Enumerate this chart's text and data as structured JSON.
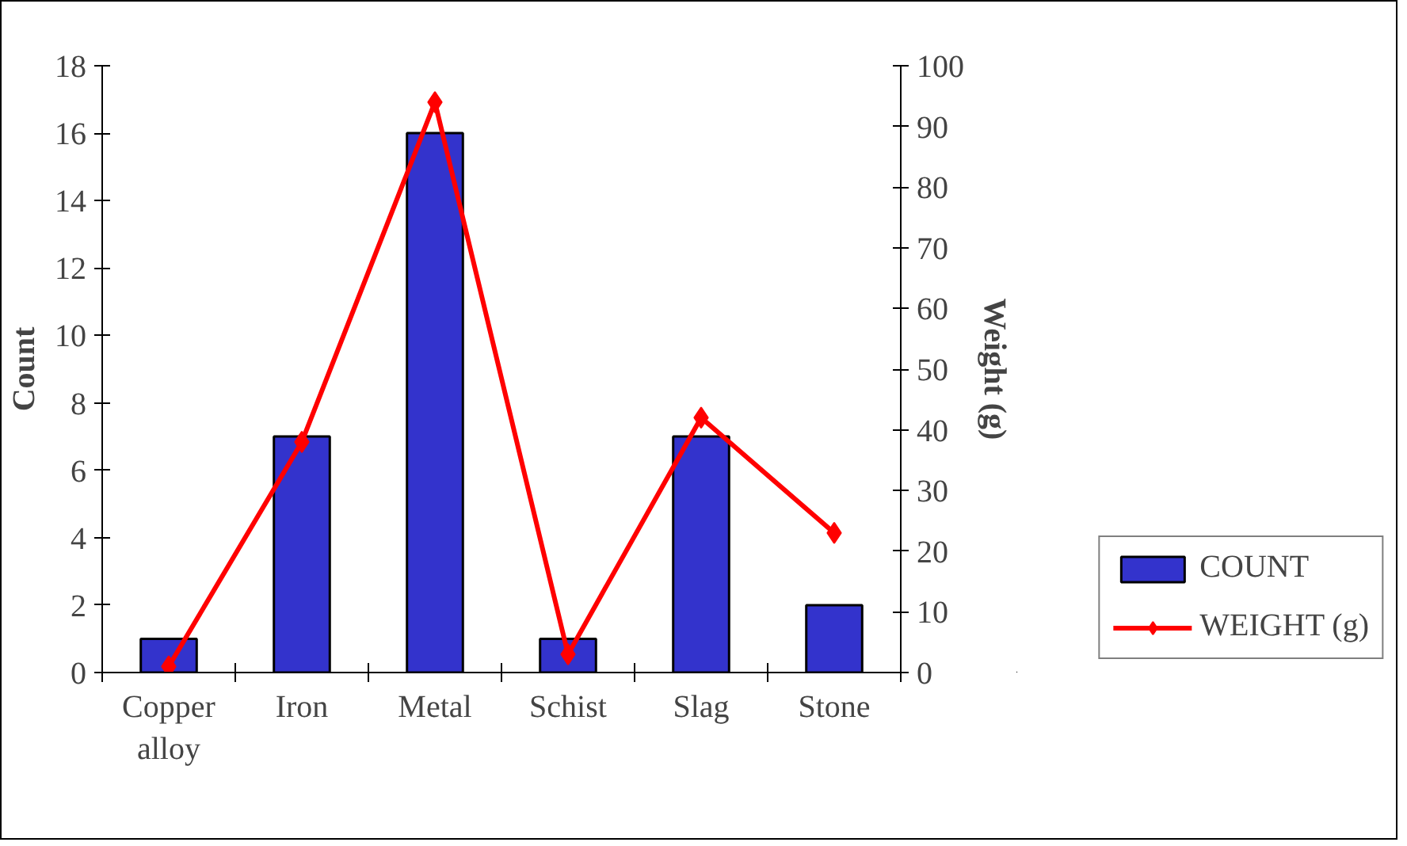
{
  "chart_data": {
    "type": "bar",
    "categories": [
      "Copper alloy",
      "Iron",
      "Metal",
      "Schist",
      "Slag",
      "Stone"
    ],
    "ylabel": "Count",
    "y2label": "Weight (g)",
    "ylim": [
      0,
      18
    ],
    "yticks": [
      0,
      2,
      4,
      6,
      8,
      10,
      12,
      14,
      16,
      18
    ],
    "y2lim": [
      0,
      100
    ],
    "y2ticks": [
      0,
      10,
      20,
      30,
      40,
      50,
      60,
      70,
      80,
      90,
      100
    ],
    "series": [
      {
        "name": "COUNT",
        "color": "#3333cc",
        "values": [
          1,
          7,
          16,
          1,
          7,
          2
        ]
      },
      {
        "name": "WEIGHT (g)",
        "type": "line",
        "axis": "y2",
        "color": "#ff0000",
        "marker": "diamond",
        "values": [
          1,
          38,
          94,
          3,
          42,
          23
        ]
      }
    ],
    "grid": false,
    "legend": "bottom right"
  }
}
